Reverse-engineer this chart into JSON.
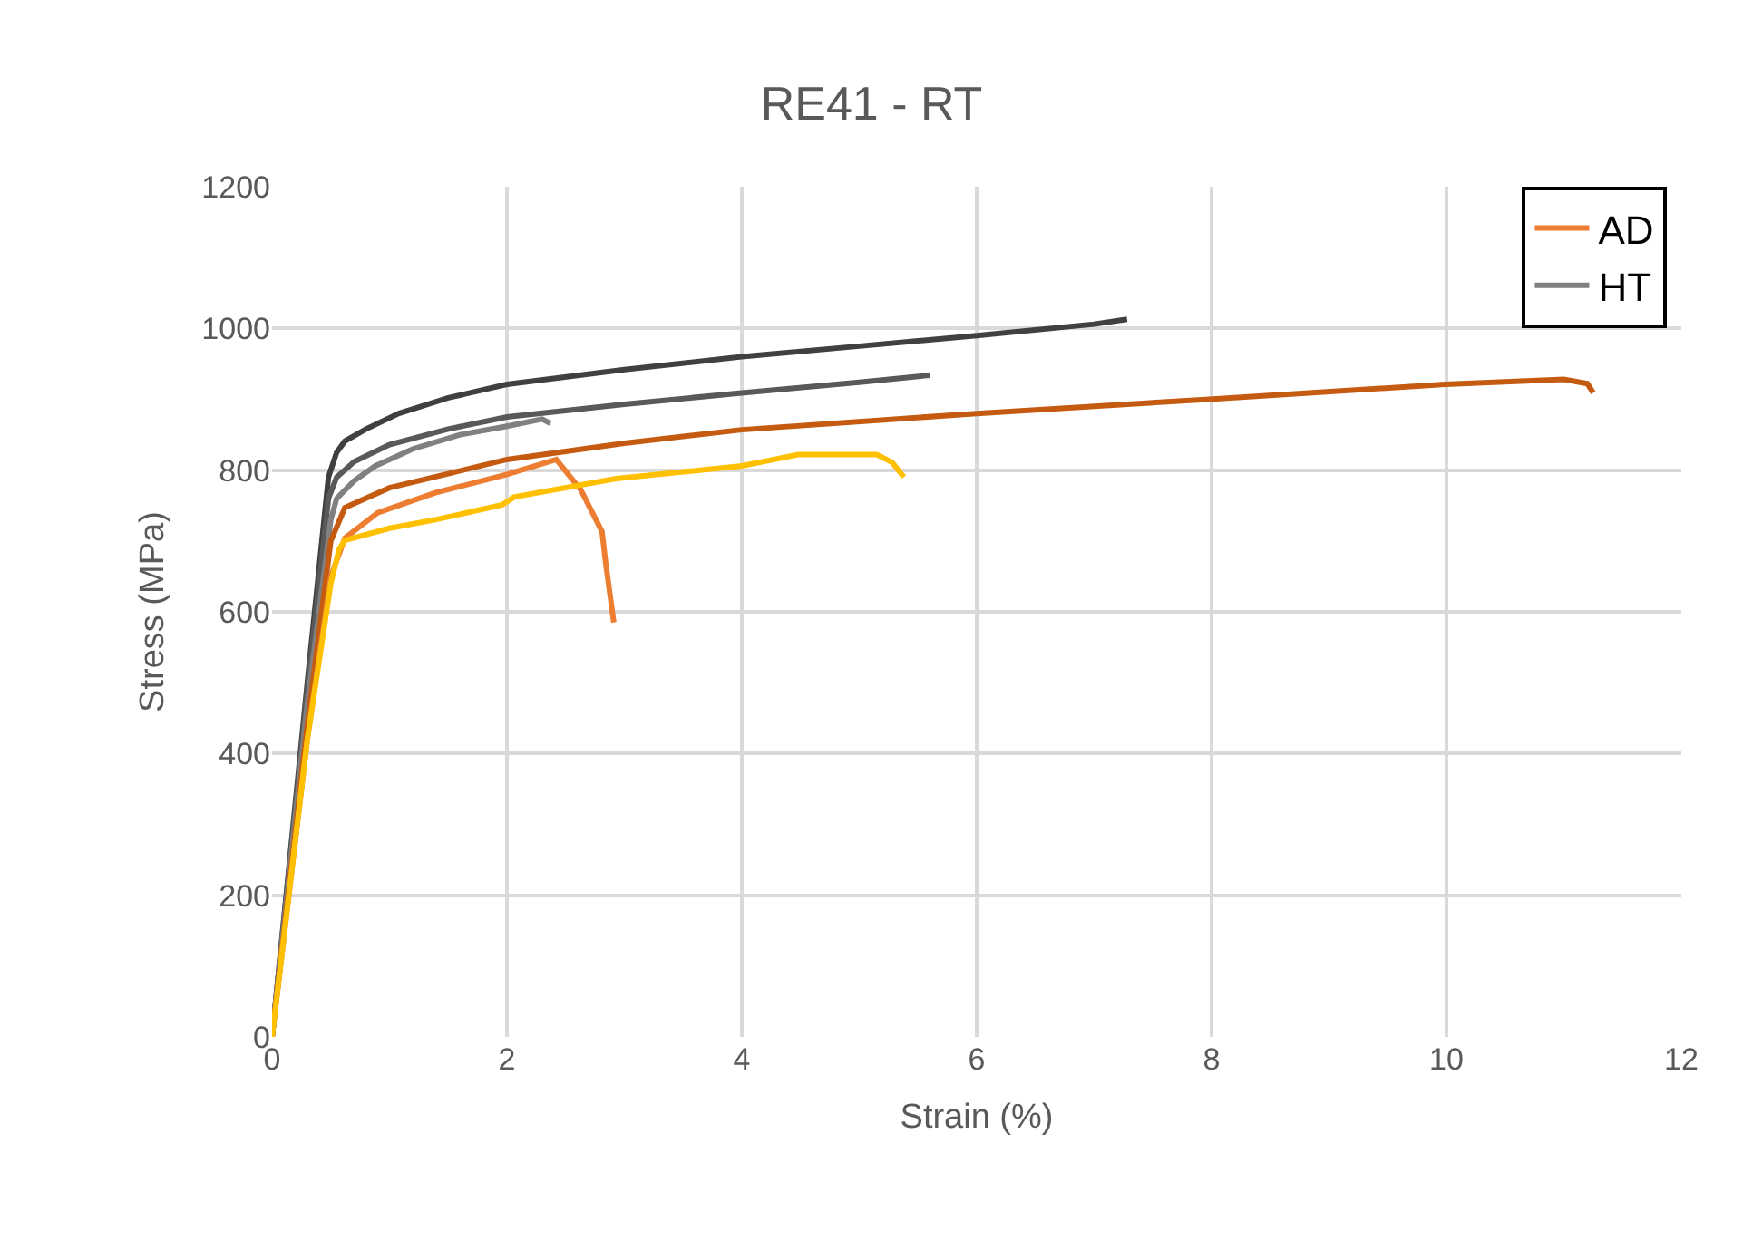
{
  "chart_data": {
    "type": "line",
    "title": "RE41 - RT",
    "xlabel": "Strain (%)",
    "ylabel": "Stress (MPa)",
    "xlim": [
      0,
      12
    ],
    "xticks": [
      0,
      2,
      4,
      6,
      8,
      10,
      12
    ],
    "ylim": [
      0,
      1200
    ],
    "yticks": [
      0,
      200,
      400,
      600,
      800,
      1000,
      1200
    ],
    "grid": true,
    "legend": "top right",
    "marker": "none",
    "line_style": "solid",
    "series": [
      {
        "color": "#404040",
        "x": [
          0,
          0.3,
          0.48,
          0.55,
          0.62,
          0.8,
          1.08,
          1.5,
          2.0,
          3.0,
          4.0,
          5.0,
          6.0,
          7.0,
          7.28
        ],
        "values": [
          0,
          500,
          790,
          825,
          841,
          858,
          880,
          902,
          921,
          942,
          960,
          975,
          990,
          1006,
          1013
        ]
      },
      {
        "color": "#595959",
        "x": [
          0,
          0.3,
          0.48,
          0.55,
          0.7,
          1.0,
          1.5,
          2.0,
          3.0,
          4.0,
          5.0,
          5.6
        ],
        "values": [
          0,
          490,
          760,
          790,
          812,
          836,
          858,
          875,
          893,
          909,
          924,
          934
        ]
      },
      {
        "name": "HT",
        "color": "#808080",
        "x": [
          0,
          0.3,
          0.5,
          0.55,
          0.7,
          0.88,
          1.2,
          1.6,
          2.0,
          2.3,
          2.37
        ],
        "values": [
          0,
          470,
          730,
          760,
          785,
          806,
          830,
          850,
          862,
          872,
          866
        ]
      },
      {
        "color": "#c55a11",
        "x": [
          0,
          0.3,
          0.5,
          0.62,
          1.0,
          1.5,
          2.0,
          3.0,
          4.0,
          6.0,
          7.98,
          9.99,
          11.0,
          11.2,
          11.25
        ],
        "values": [
          0,
          440,
          700,
          747,
          775,
          795,
          815,
          838,
          857,
          880,
          900,
          921,
          928,
          922,
          909
        ]
      },
      {
        "name": "AD",
        "color": "#ed7d31",
        "x": [
          0,
          0.3,
          0.5,
          0.62,
          0.9,
          1.39,
          2.0,
          2.42,
          2.63,
          2.81,
          2.84,
          2.91
        ],
        "values": [
          0,
          420,
          650,
          704,
          740,
          768,
          794,
          815,
          772,
          713,
          670,
          585
        ]
      },
      {
        "color": "#ffc000",
        "x": [
          0,
          0.3,
          0.5,
          0.57,
          0.62,
          1.0,
          1.39,
          1.96,
          2.06,
          2.93,
          4.0,
          4.48,
          5.15,
          5.28,
          5.38
        ],
        "values": [
          0,
          420,
          640,
          688,
          701,
          718,
          730,
          751,
          762,
          788,
          806,
          822,
          822,
          811,
          790
        ]
      }
    ]
  }
}
